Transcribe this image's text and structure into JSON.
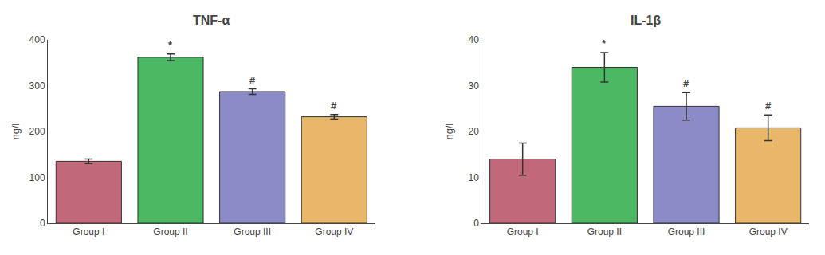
{
  "chart_data": [
    {
      "type": "bar",
      "title": "TNF-α",
      "ylabel": "ng/l",
      "categories": [
        "Group I",
        "Group II",
        "Group III",
        "Group IV"
      ],
      "values": [
        135,
        362,
        287,
        232
      ],
      "errors": [
        5,
        7,
        6,
        5
      ],
      "colors": [
        "#c1687a",
        "#4db864",
        "#8b8cc7",
        "#e8b76a"
      ],
      "annotations": [
        null,
        "*",
        "#",
        "#"
      ],
      "ylim": [
        0,
        400
      ],
      "yticks": [
        0,
        100,
        200,
        300,
        400
      ],
      "grid": false
    },
    {
      "type": "bar",
      "title": "IL-1β",
      "ylabel": "ng/l",
      "categories": [
        "Group I",
        "Group II",
        "Group III",
        "Group IV"
      ],
      "values": [
        14,
        34,
        25.5,
        20.8
      ],
      "errors": [
        3.5,
        3.2,
        3.0,
        2.8
      ],
      "colors": [
        "#c1687a",
        "#4db864",
        "#8b8cc7",
        "#e8b76a"
      ],
      "annotations": [
        null,
        "*",
        "#",
        "#"
      ],
      "ylim": [
        0,
        40
      ],
      "yticks": [
        0,
        10,
        20,
        30,
        40
      ],
      "grid": false
    }
  ]
}
